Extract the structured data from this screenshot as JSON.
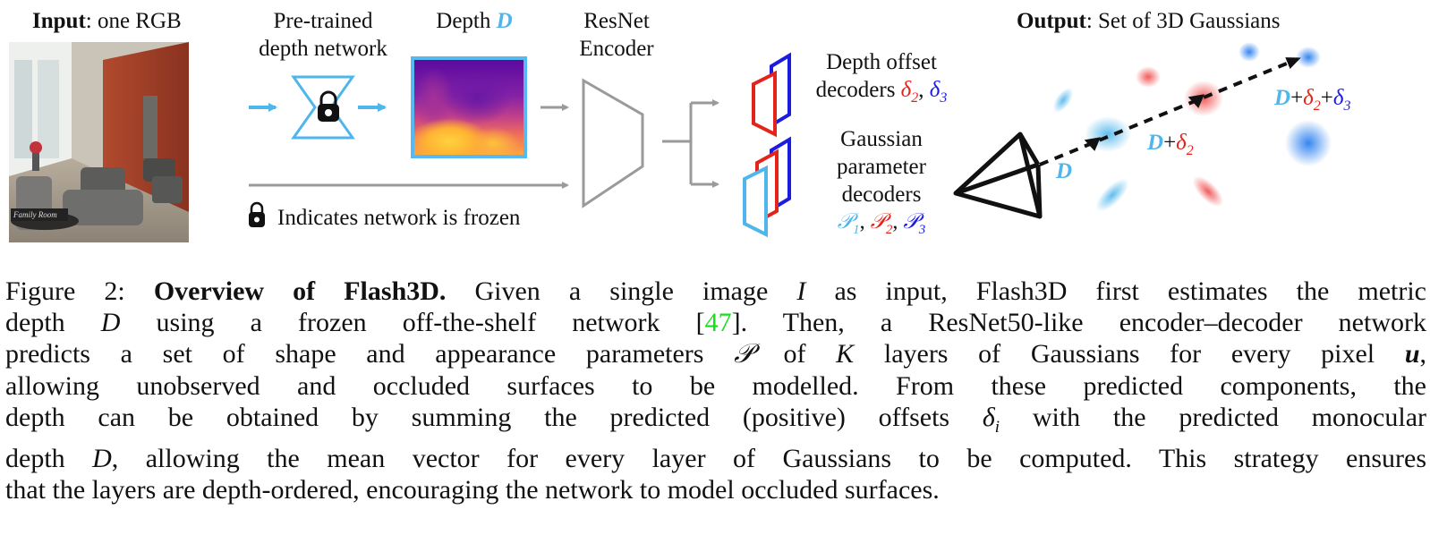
{
  "figure": {
    "labels": {
      "input_bold": "Input",
      "input_rest": ": one RGB",
      "pretrained_line1": "Pre-trained",
      "pretrained_line2": "depth network",
      "depth_word": "Depth ",
      "depth_symbol": "D",
      "resnet_line1": "ResNet",
      "resnet_line2": "Encoder",
      "depth_offset_line1": "Depth offset",
      "depth_offset_line2_prefix": "decoders ",
      "delta2": "δ2",
      "comma": ", ",
      "delta3": "δ3",
      "gaussian_line1": "Gaussian",
      "gaussian_line2": "parameter",
      "gaussian_line3": "decoders",
      "p1": "𝒫1",
      "p2": "𝒫2",
      "p3": "𝒫3",
      "frozen_note": "Indicates network is frozen",
      "output_bold": "Output",
      "output_rest": ": Set of 3D Gaussians",
      "ray_d": "D",
      "ray_d_plus": "D",
      "plus": "+",
      "ray_end_d": "D"
    },
    "photo_caption": "Family Room",
    "colors": {
      "cyan": "#4fb6ec",
      "red": "#e3241b",
      "blue": "#1c1ce0",
      "gray": "#9a9a9a",
      "ref_green": "#16e01a"
    },
    "icons": [
      "lock-icon",
      "arrow-right-icon",
      "camera-frustum-icon"
    ]
  },
  "caption": {
    "line1_a": "Figure 2: ",
    "line1_bold": "Overview of Flash3D.",
    "line1_b": " Given a single image ",
    "line1_I": "I",
    "line1_c": " as input, Flash3D first estimates the metric",
    "line2_a": "depth ",
    "line2_D": "D",
    "line2_b": " using a frozen off-the-shelf network [",
    "line2_ref": "47",
    "line2_c": "]. Then, a ResNet50-like encoder–decoder network",
    "line3_a": "predicts a set of shape and appearance parameters ",
    "line3_P": "𝒫",
    "line3_b": " of ",
    "line3_K": "K",
    "line3_c": " layers of Gaussians for every pixel ",
    "line3_u": "u",
    "line3_d": ",",
    "line4": "allowing unobserved and occluded surfaces to be modelled. From these predicted components, the",
    "line5_a": "depth can be obtained by summing the predicted (positive) offsets ",
    "line5_delta": "δ",
    "line5_i": "i",
    "line5_b": " with the predicted monocular",
    "line6_a": "depth ",
    "line6_D": "D",
    "line6_b": ", allowing the mean vector for every layer of Gaussians to be computed. This strategy ensures",
    "line7": "that the layers are depth-ordered, encouraging the network to model occluded surfaces."
  }
}
